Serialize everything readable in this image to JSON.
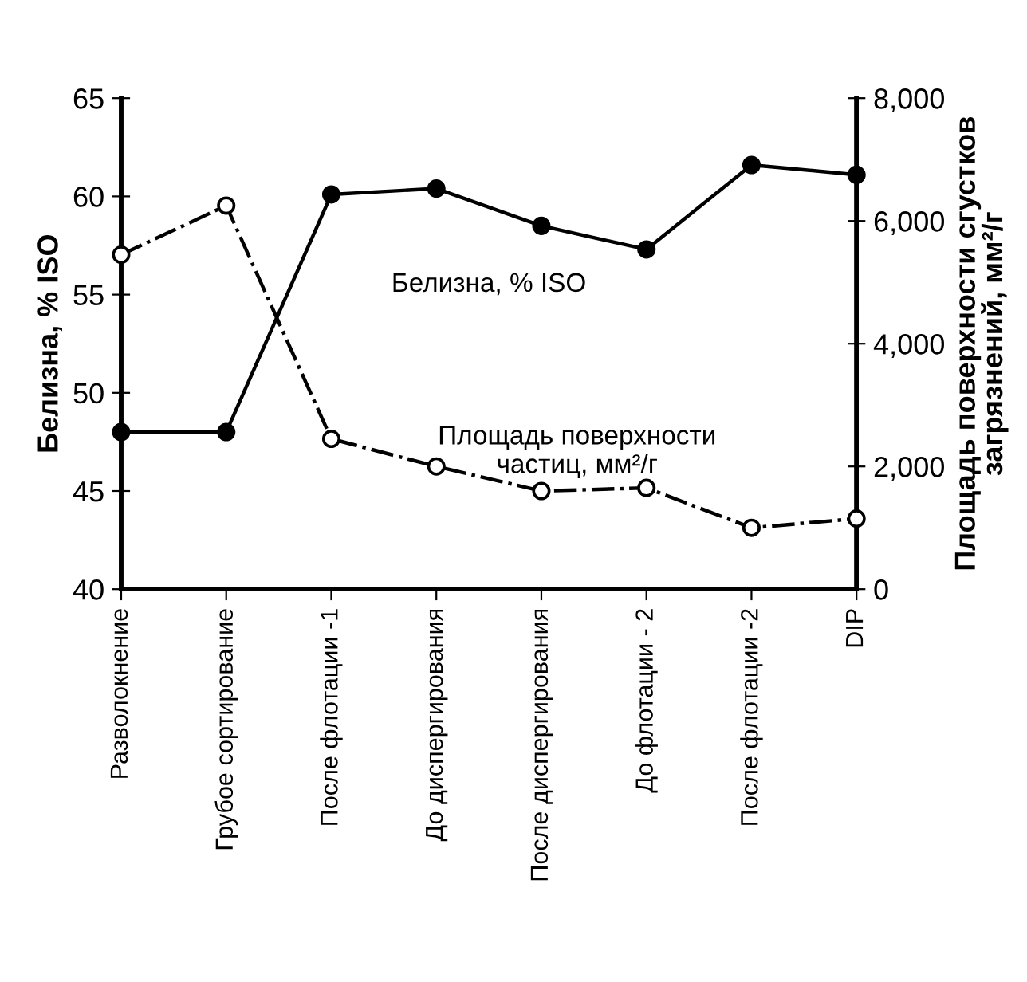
{
  "chart_data": {
    "type": "line",
    "ylabel": "Белизна, % ISO",
    "y2label": "Площадь поверхности сгустков\nзагрязнений, мм²/г",
    "categories": [
      "Разволокнение",
      "Грубое сортирование",
      "После флотации -1",
      "До диспергирования",
      "После диспергирования",
      "До флотации - 2",
      "После флотации -2",
      "DIP"
    ],
    "series": [
      {
        "name": "Белизна, % ISO",
        "color": "#000000",
        "marker": "circle",
        "line_style": "solid",
        "values": [
          48.0,
          48.0,
          60.1,
          60.4,
          58.5,
          57.3,
          61.6,
          61.1
        ]
      },
      {
        "name": "Площадь поверхности\nчастиц, мм²/г",
        "color": "#000000",
        "marker": "circle",
        "line_style": "dashed",
        "axis": "y2",
        "values": [
          5450,
          6250,
          2450,
          2000,
          1600,
          1650,
          1000,
          1150
        ]
      }
    ],
    "ylim": [
      40,
      65
    ],
    "yticks": [
      40,
      45,
      50,
      55,
      60,
      65
    ],
    "y2lim": [
      0,
      8000
    ],
    "y2ticks": [
      0,
      {
        "value": 2000,
        "label": "2,000"
      },
      {
        "value": 4000,
        "label": "4,000"
      },
      {
        "value": 6000,
        "label": "6,000"
      },
      {
        "value": 8000,
        "label": "8,000"
      }
    ],
    "grid": false,
    "legend": false
  }
}
